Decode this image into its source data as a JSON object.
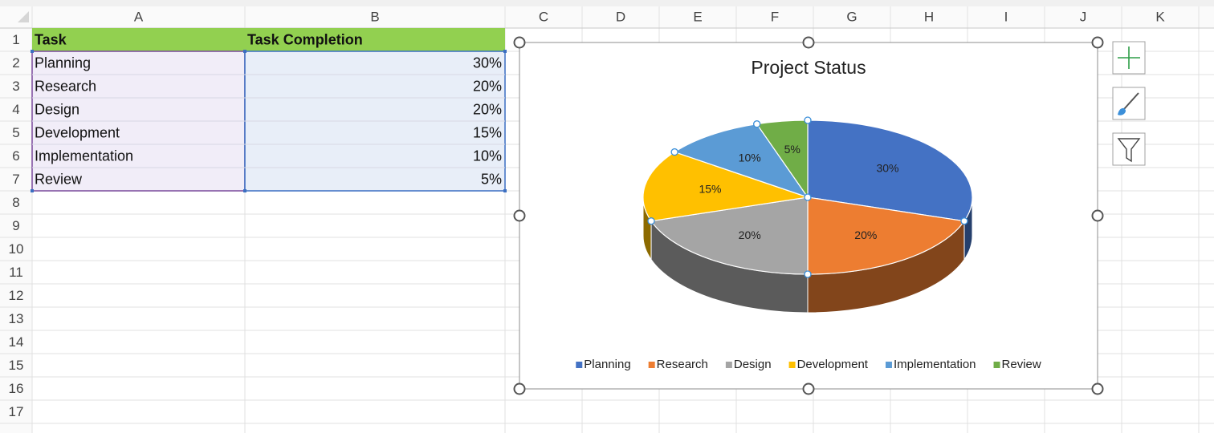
{
  "columns": [
    "A",
    "B",
    "C",
    "D",
    "E",
    "F",
    "G",
    "H",
    "I",
    "J",
    "K"
  ],
  "row_numbers": [
    1,
    2,
    3,
    4,
    5,
    6,
    7,
    8,
    9,
    10,
    11,
    12,
    13,
    14,
    15,
    16,
    17
  ],
  "table": {
    "header": [
      "Task",
      "Task Completion"
    ],
    "rows": [
      [
        "Planning",
        "30%"
      ],
      [
        "Research",
        "20%"
      ],
      [
        "Design",
        "20%"
      ],
      [
        "Development",
        "15%"
      ],
      [
        "Implementation",
        "10%"
      ],
      [
        "Review",
        "5%"
      ]
    ]
  },
  "chart_data": {
    "type": "pie",
    "title": "Project Status",
    "categories": [
      "Planning",
      "Research",
      "Design",
      "Development",
      "Implementation",
      "Review"
    ],
    "values": [
      30,
      20,
      20,
      15,
      10,
      5
    ],
    "value_labels": [
      "30%",
      "20%",
      "20%",
      "15%",
      "10%",
      "5%"
    ],
    "colors": [
      "#4472c4",
      "#ed7d31",
      "#a5a5a5",
      "#ffc000",
      "#5b9bd5",
      "#70ad47"
    ],
    "legend": "bottom"
  }
}
